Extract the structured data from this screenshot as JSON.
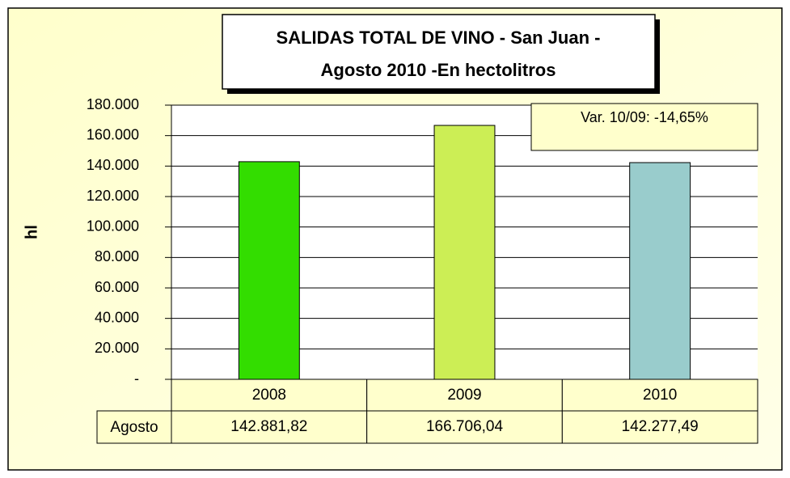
{
  "chart_data": {
    "type": "bar",
    "title": [
      "SALIDAS TOTAL DE VINO - San Juan  -",
      "Agosto  2010 -En hectolitros"
    ],
    "ylabel": "hl",
    "annotation": "Var. 10/09:  -14,65%",
    "row_label": "Agosto",
    "categories": [
      "2008",
      "2009",
      "2010"
    ],
    "values": [
      142881.82,
      166706.04,
      142277.49
    ],
    "value_labels": [
      "142.881,82",
      "166.706,04",
      "142.277,49"
    ],
    "colors": [
      "#33dd00",
      "#ccee55",
      "#99cccc"
    ],
    "ylim": [
      0,
      180000
    ],
    "yticks": [
      {
        "value": 0,
        "label": "-"
      },
      {
        "value": 20000,
        "label": "20.000"
      },
      {
        "value": 40000,
        "label": "40.000"
      },
      {
        "value": 60000,
        "label": "60.000"
      },
      {
        "value": 80000,
        "label": "80.000"
      },
      {
        "value": 100000,
        "label": "100.000"
      },
      {
        "value": 120000,
        "label": "120.000"
      },
      {
        "value": 140000,
        "label": "140.000"
      },
      {
        "value": 160000,
        "label": "160.000"
      },
      {
        "value": 180000,
        "label": "180.000"
      }
    ],
    "grid": true
  }
}
